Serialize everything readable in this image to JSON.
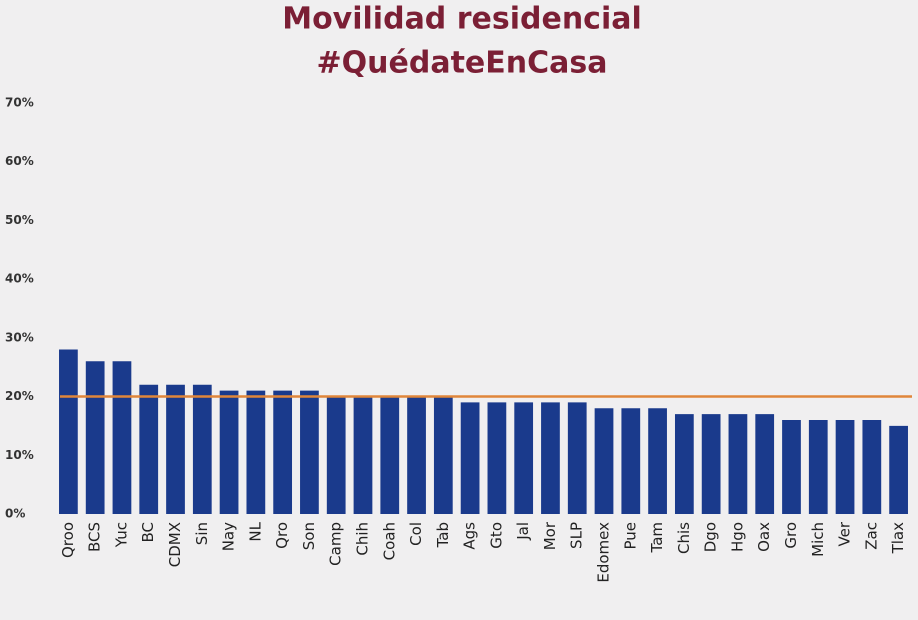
{
  "chart_data": {
    "type": "bar",
    "title": "Movilidad residencial",
    "subtitle": "#QuédateEnCasa",
    "categories": [
      "Qroo",
      "BCS",
      "Yuc",
      "BC",
      "CDMX",
      "Sin",
      "Nay",
      "NL",
      "Qro",
      "Son",
      "Camp",
      "Chih",
      "Coah",
      "Col",
      "Tab",
      "Ags",
      "Gto",
      "Jal",
      "Mor",
      "SLP",
      "Edomex",
      "Pue",
      "Tam",
      "Chis",
      "Dgo",
      "Hgo",
      "Oax",
      "Gro",
      "Mich",
      "Ver",
      "Zac",
      "Tlax"
    ],
    "values": [
      28,
      26,
      26,
      22,
      22,
      22,
      21,
      21,
      21,
      21,
      20,
      20,
      20,
      20,
      20,
      19,
      19,
      19,
      19,
      19,
      18,
      18,
      18,
      17,
      17,
      17,
      17,
      16,
      16,
      16,
      16,
      15
    ],
    "color": "#1a3a8c",
    "reference_line": {
      "value": 20,
      "color": "#e0863a"
    },
    "ylim": [
      0,
      72
    ],
    "yticks": [
      {
        "value": 0,
        "label": "0%"
      },
      {
        "value": 10,
        "label": "10%"
      },
      {
        "value": 20,
        "label": "20%"
      },
      {
        "value": 30,
        "label": "30%"
      },
      {
        "value": 40,
        "label": "40%"
      },
      {
        "value": 50,
        "label": "50%"
      },
      {
        "value": 60,
        "label": "60%"
      },
      {
        "value": 70,
        "label": "70%"
      }
    ],
    "grid": false
  }
}
